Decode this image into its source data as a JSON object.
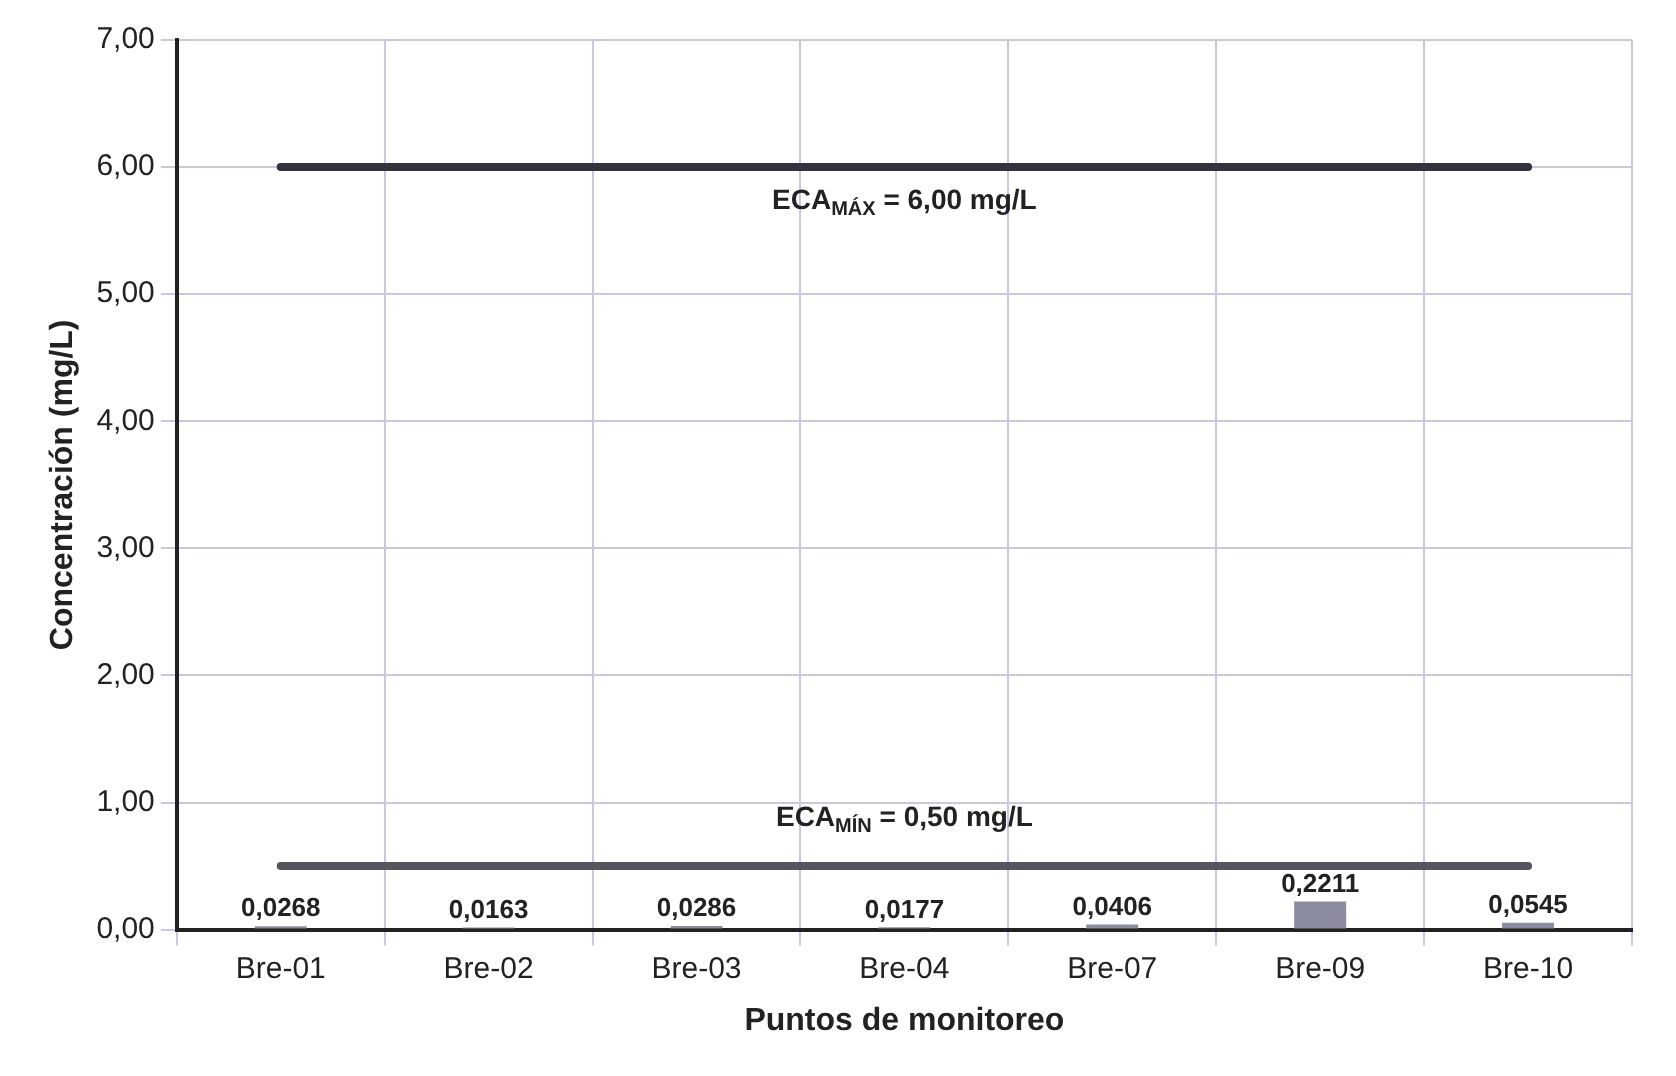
{
  "chart_data": {
    "type": "bar",
    "xlabel": "Puntos de monitoreo",
    "ylabel": "Concentración (mg/L)",
    "categories": [
      "Bre-01",
      "Bre-02",
      "Bre-03",
      "Bre-04",
      "Bre-07",
      "Bre-09",
      "Bre-10"
    ],
    "values": [
      0.0268,
      0.0163,
      0.0286,
      0.0177,
      0.0406,
      0.2211,
      0.0545
    ],
    "color": "#8c8ca0",
    "value_labels": [
      "0,0268",
      "0,0163",
      "0,0286",
      "0,0177",
      "0,0406",
      "0,2211",
      "0,0545"
    ],
    "ylim": [
      0,
      7
    ],
    "yticks": [
      {
        "value": 0,
        "label": "0,00"
      },
      {
        "value": 1,
        "label": "1,00"
      },
      {
        "value": 2,
        "label": "2,00"
      },
      {
        "value": 3,
        "label": "3,00"
      },
      {
        "value": 4,
        "label": "4,00"
      },
      {
        "value": 5,
        "label": "5,00"
      },
      {
        "value": 6,
        "label": "6,00"
      },
      {
        "value": 7,
        "label": "7,00"
      }
    ],
    "grid": true,
    "legend": false,
    "ref_lines": [
      {
        "axis": "y",
        "value": 6,
        "label": "ECA$_{MÁX}$ = 6,00 mg/L",
        "color": "#333340"
      },
      {
        "axis": "y",
        "value": 0.5,
        "label": "ECA$_{MÍN}$ = 0,50 mg/L",
        "color": "#555560"
      }
    ]
  }
}
